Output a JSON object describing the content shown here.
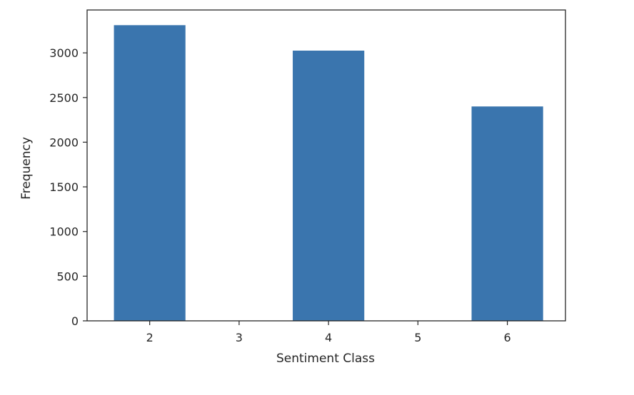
{
  "chart_data": {
    "type": "bar",
    "title": "",
    "xlabel": "Sentiment Class",
    "ylabel": "Frequency",
    "x": [
      2,
      4,
      6
    ],
    "values": [
      3310,
      3025,
      2400
    ],
    "bar_width": 0.8,
    "xlim": [
      1.3,
      6.65
    ],
    "ylim": [
      0,
      3480
    ],
    "x_ticks": [
      2,
      3,
      4,
      5,
      6
    ],
    "y_ticks": [
      0,
      500,
      1000,
      1500,
      2000,
      2500,
      3000
    ],
    "grid": false,
    "legend": "none",
    "colors": {
      "bar": "#3a75ae",
      "axes": "#262626",
      "background": "#ffffff"
    }
  }
}
